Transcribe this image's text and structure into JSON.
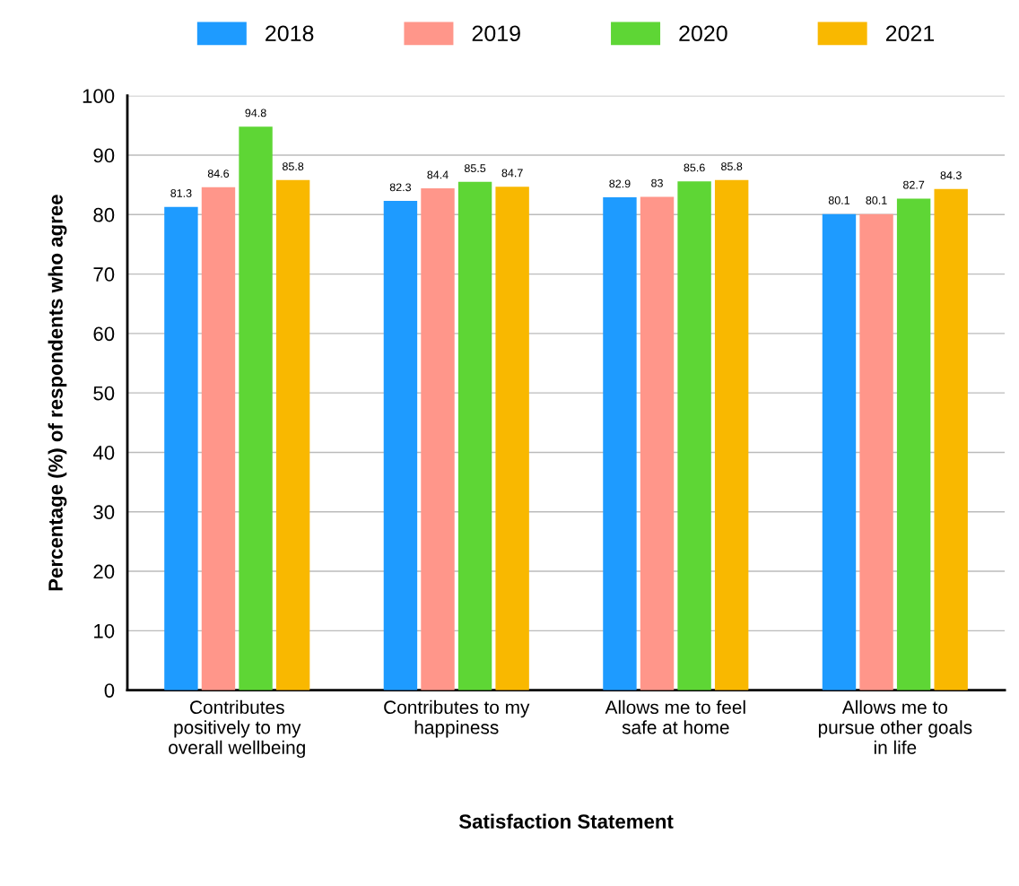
{
  "chart_data": {
    "type": "bar",
    "xlabel": "Satisfaction Statement",
    "ylabel": "Percentage (%) of respondents who agree",
    "categories": [
      "Contributes\npositively to my\noverall wellbeing",
      "Contributes to my\nhappiness",
      "Allows me to feel\nsafe at home",
      "Allows me to\npursue other goals\nin life"
    ],
    "series": [
      {
        "name": "2018",
        "color": "#1e9bff",
        "values": [
          81.3,
          82.3,
          82.9,
          80.1
        ]
      },
      {
        "name": "2019",
        "color": "#ff968a",
        "values": [
          84.6,
          84.4,
          83,
          80.1
        ]
      },
      {
        "name": "2020",
        "color": "#5ed635",
        "values": [
          94.8,
          85.5,
          85.6,
          82.7
        ]
      },
      {
        "name": "2021",
        "color": "#f9b800",
        "values": [
          85.8,
          84.7,
          85.8,
          84.3
        ]
      }
    ],
    "ylim": [
      0,
      100
    ],
    "yticks": [
      0,
      10,
      20,
      30,
      40,
      50,
      60,
      70,
      80,
      90,
      100
    ],
    "grid": "y",
    "legend": "top",
    "data_labels": true
  }
}
